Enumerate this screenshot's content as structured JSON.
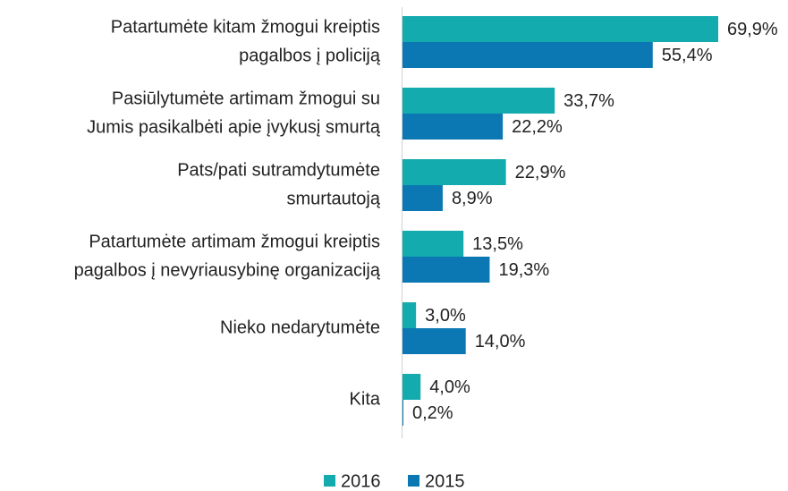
{
  "chart_data": {
    "type": "bar",
    "orientation": "horizontal",
    "categories": [
      [
        "Patartumėte kitam žmogui kreiptis",
        "pagalbos į policiją"
      ],
      [
        "Pasiūlytumėte artimam žmogui su",
        "Jumis pasikalbėti apie įvykusį smurtą"
      ],
      [
        "Pats/pati sutramdytumėte",
        "smurtautoją"
      ],
      [
        "Patartumėte artimam žmogui kreiptis",
        "pagalbos į nevyriausybinę organizaciją"
      ],
      [
        "Nieko nedarytumėte"
      ],
      [
        "Kita"
      ]
    ],
    "series": [
      {
        "name": "2016",
        "color": "#14abaf",
        "values": [
          69.9,
          33.7,
          22.9,
          13.5,
          3.0,
          4.0
        ],
        "value_labels": [
          "69,9%",
          "33,7%",
          "22,9%",
          "13,5%",
          "3,0%",
          "4,0%"
        ]
      },
      {
        "name": "2015",
        "color": "#0b77b3",
        "values": [
          55.4,
          22.2,
          8.9,
          19.3,
          14.0,
          0.2
        ],
        "value_labels": [
          "55,4%",
          "22,2%",
          "8,9%",
          "19,3%",
          "14,0%",
          "0,2%"
        ]
      }
    ],
    "legend": "bottom"
  }
}
